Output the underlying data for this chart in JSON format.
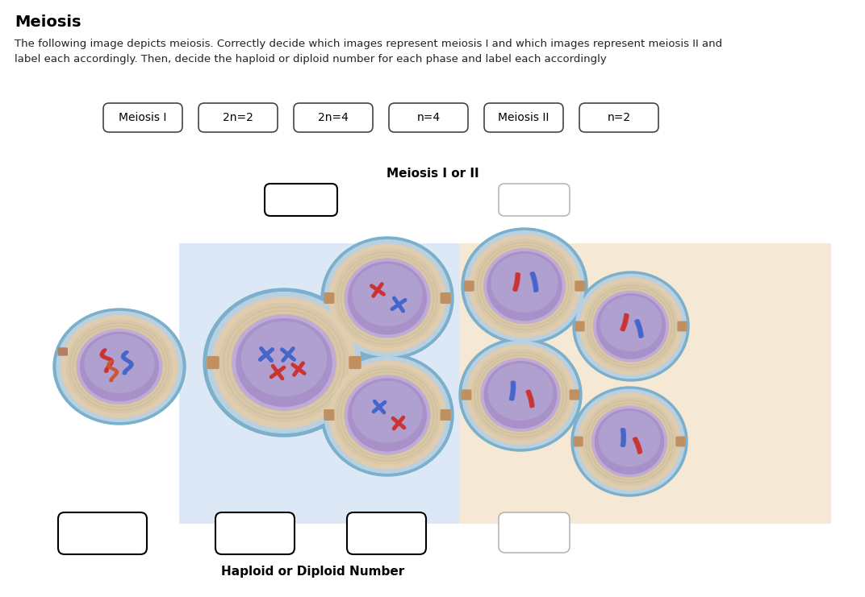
{
  "title": "Meiosis",
  "description": "The following image depicts meiosis. Correctly decide which images represent meiosis I and which images represent meiosis II and\nlabel each accordingly. Then, decide the haploid or diploid number for each phase and label each accordingly",
  "word_bank": [
    "Meiosis I",
    "2n=2",
    "2n=4",
    "n=4",
    "Meiosis II",
    "n=2"
  ],
  "meiosis_label": "Meiosis I or II",
  "haploid_diploid_label": "Haploid or Diploid Number",
  "bg_color": "#ffffff",
  "blue_bg": "#dce8f5",
  "tan_bg": "#f5e8d5",
  "box_color": "#333333",
  "box_fill": "#ffffff",
  "cell_outer": "#8bbdd4",
  "cell_cyto": "#e8d8c0",
  "cell_membrane": "#c8b8d8",
  "cell_nucleus": "#9880b8",
  "cell_nub": "#c8906060",
  "spindle_color": "#b08878"
}
